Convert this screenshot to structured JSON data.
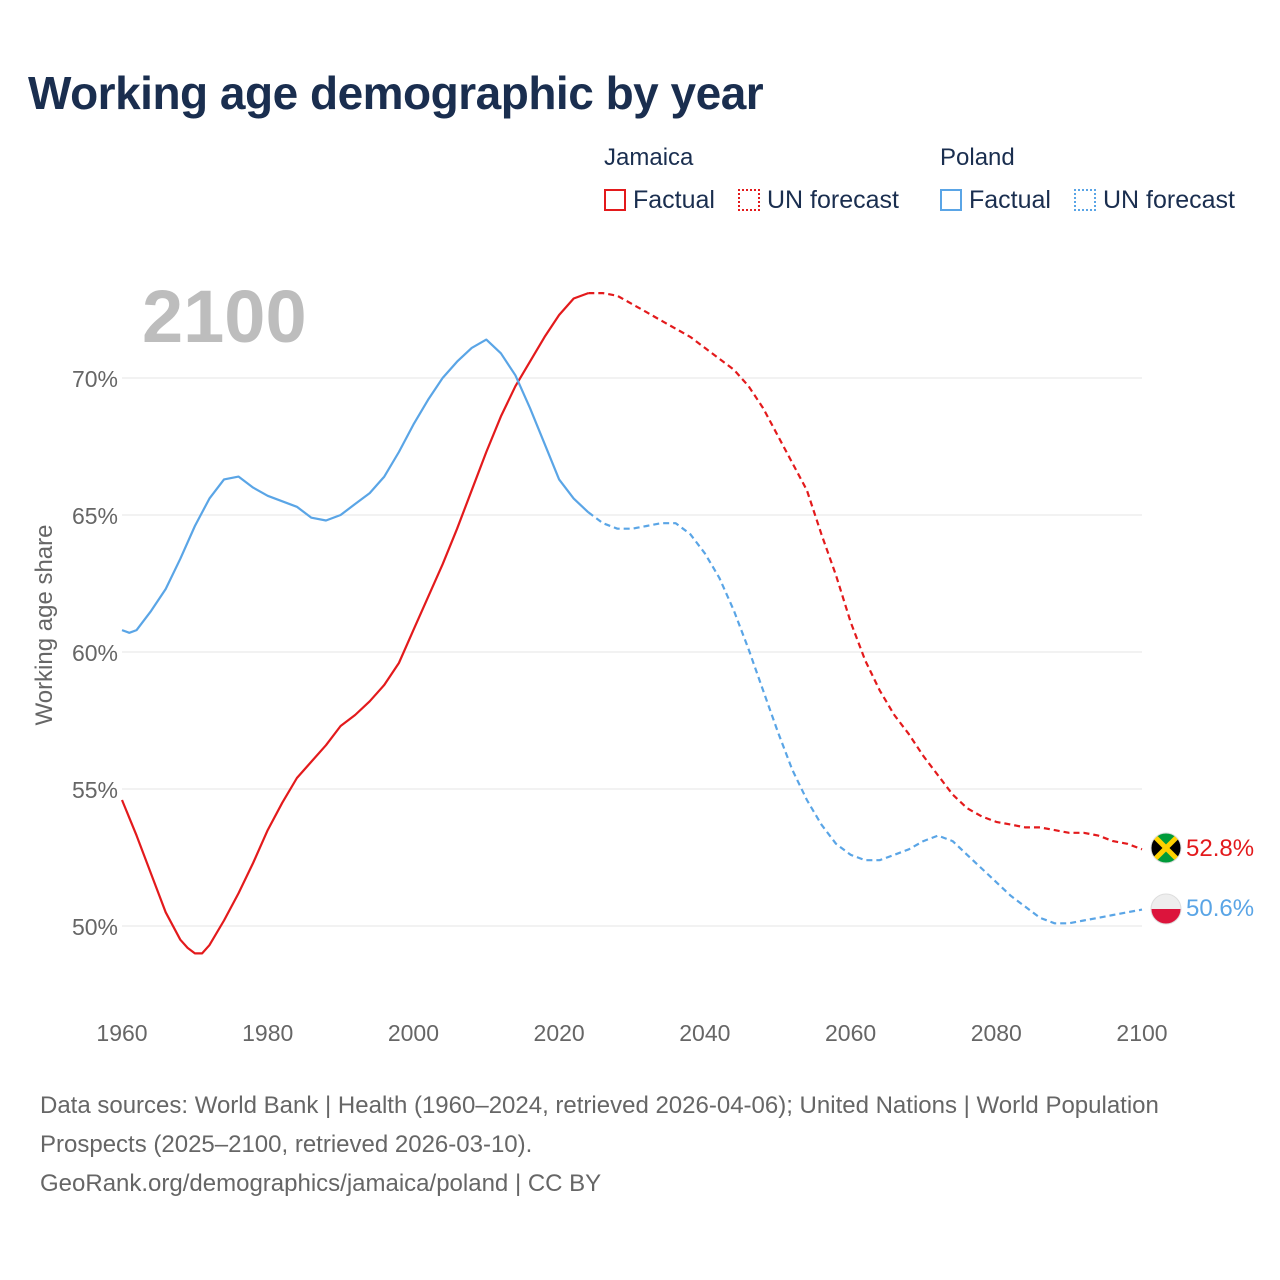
{
  "title": "Working age demographic by year",
  "legend": {
    "groups": [
      {
        "name": "Jamaica",
        "factual_label": "Factual",
        "forecast_label": "UN forecast",
        "color": "#e31a1c"
      },
      {
        "name": "Poland",
        "factual_label": "Factual",
        "forecast_label": "UN forecast",
        "color": "#5aa5e6"
      }
    ]
  },
  "year_label": "2100",
  "footer": {
    "line1": "Data sources: World Bank | Health (1960–2024, retrieved 2026-04-06); United Nations | World Population Prospects (2025–2100, retrieved 2026-03-10).",
    "line2": "GeoRank.org/demographics/jamaica/poland | CC BY"
  },
  "chart_data": {
    "type": "line",
    "title": "Working age demographic by year",
    "xlabel": "",
    "ylabel": "Working age share",
    "xlim": [
      1960,
      2100
    ],
    "ylim": [
      47,
      73.5
    ],
    "x_ticks": [
      1960,
      1980,
      2000,
      2020,
      2040,
      2060,
      2080,
      2100
    ],
    "y_ticks": [
      50,
      55,
      60,
      65,
      70
    ],
    "y_tick_labels": [
      "50%",
      "55%",
      "60%",
      "65%",
      "70%"
    ],
    "grid": true,
    "factual_end_year": 2024,
    "end_labels": [
      {
        "series": "Jamaica",
        "text": "52.8%",
        "flag": "jamaica-flag-icon"
      },
      {
        "series": "Poland",
        "text": "50.6%",
        "flag": "poland-flag-icon"
      }
    ],
    "series": [
      {
        "name": "Jamaica",
        "color": "#e31a1c",
        "points": [
          [
            1960,
            54.6
          ],
          [
            1962,
            53.3
          ],
          [
            1964,
            51.9
          ],
          [
            1966,
            50.5
          ],
          [
            1968,
            49.5
          ],
          [
            1969,
            49.2
          ],
          [
            1970,
            49.0
          ],
          [
            1971,
            49.0
          ],
          [
            1972,
            49.3
          ],
          [
            1974,
            50.2
          ],
          [
            1976,
            51.2
          ],
          [
            1978,
            52.3
          ],
          [
            1980,
            53.5
          ],
          [
            1982,
            54.5
          ],
          [
            1984,
            55.4
          ],
          [
            1986,
            56.0
          ],
          [
            1988,
            56.6
          ],
          [
            1990,
            57.3
          ],
          [
            1992,
            57.7
          ],
          [
            1994,
            58.2
          ],
          [
            1996,
            58.8
          ],
          [
            1998,
            59.6
          ],
          [
            2000,
            60.8
          ],
          [
            2002,
            62.0
          ],
          [
            2004,
            63.2
          ],
          [
            2006,
            64.5
          ],
          [
            2008,
            65.9
          ],
          [
            2010,
            67.3
          ],
          [
            2012,
            68.6
          ],
          [
            2014,
            69.7
          ],
          [
            2016,
            70.6
          ],
          [
            2018,
            71.5
          ],
          [
            2020,
            72.3
          ],
          [
            2022,
            72.9
          ],
          [
            2024,
            73.1
          ],
          [
            2026,
            73.1
          ],
          [
            2028,
            73.0
          ],
          [
            2030,
            72.7
          ],
          [
            2032,
            72.4
          ],
          [
            2034,
            72.1
          ],
          [
            2036,
            71.8
          ],
          [
            2038,
            71.5
          ],
          [
            2040,
            71.1
          ],
          [
            2042,
            70.7
          ],
          [
            2044,
            70.3
          ],
          [
            2046,
            69.7
          ],
          [
            2048,
            68.9
          ],
          [
            2050,
            67.9
          ],
          [
            2052,
            66.9
          ],
          [
            2054,
            65.9
          ],
          [
            2056,
            64.3
          ],
          [
            2058,
            62.8
          ],
          [
            2060,
            61.1
          ],
          [
            2062,
            59.7
          ],
          [
            2064,
            58.6
          ],
          [
            2066,
            57.7
          ],
          [
            2068,
            57.0
          ],
          [
            2070,
            56.2
          ],
          [
            2072,
            55.5
          ],
          [
            2074,
            54.8
          ],
          [
            2076,
            54.3
          ],
          [
            2078,
            54.0
          ],
          [
            2080,
            53.8
          ],
          [
            2082,
            53.7
          ],
          [
            2084,
            53.6
          ],
          [
            2086,
            53.6
          ],
          [
            2088,
            53.5
          ],
          [
            2090,
            53.4
          ],
          [
            2092,
            53.4
          ],
          [
            2094,
            53.3
          ],
          [
            2096,
            53.1
          ],
          [
            2098,
            53.0
          ],
          [
            2100,
            52.8
          ]
        ]
      },
      {
        "name": "Poland",
        "color": "#5aa5e6",
        "points": [
          [
            1960,
            60.8
          ],
          [
            1961,
            60.7
          ],
          [
            1962,
            60.8
          ],
          [
            1964,
            61.5
          ],
          [
            1966,
            62.3
          ],
          [
            1968,
            63.4
          ],
          [
            1970,
            64.6
          ],
          [
            1972,
            65.6
          ],
          [
            1974,
            66.3
          ],
          [
            1976,
            66.4
          ],
          [
            1978,
            66.0
          ],
          [
            1980,
            65.7
          ],
          [
            1982,
            65.5
          ],
          [
            1984,
            65.3
          ],
          [
            1986,
            64.9
          ],
          [
            1988,
            64.8
          ],
          [
            1990,
            65.0
          ],
          [
            1992,
            65.4
          ],
          [
            1994,
            65.8
          ],
          [
            1996,
            66.4
          ],
          [
            1998,
            67.3
          ],
          [
            2000,
            68.3
          ],
          [
            2002,
            69.2
          ],
          [
            2004,
            70.0
          ],
          [
            2006,
            70.6
          ],
          [
            2008,
            71.1
          ],
          [
            2010,
            71.4
          ],
          [
            2012,
            70.9
          ],
          [
            2014,
            70.1
          ],
          [
            2016,
            68.9
          ],
          [
            2018,
            67.6
          ],
          [
            2020,
            66.3
          ],
          [
            2022,
            65.6
          ],
          [
            2024,
            65.1
          ],
          [
            2026,
            64.7
          ],
          [
            2028,
            64.5
          ],
          [
            2030,
            64.5
          ],
          [
            2032,
            64.6
          ],
          [
            2034,
            64.7
          ],
          [
            2036,
            64.7
          ],
          [
            2038,
            64.3
          ],
          [
            2040,
            63.6
          ],
          [
            2042,
            62.7
          ],
          [
            2044,
            61.5
          ],
          [
            2046,
            60.1
          ],
          [
            2048,
            58.6
          ],
          [
            2050,
            57.1
          ],
          [
            2052,
            55.7
          ],
          [
            2054,
            54.6
          ],
          [
            2056,
            53.7
          ],
          [
            2058,
            53.0
          ],
          [
            2060,
            52.6
          ],
          [
            2062,
            52.4
          ],
          [
            2064,
            52.4
          ],
          [
            2066,
            52.6
          ],
          [
            2068,
            52.8
          ],
          [
            2070,
            53.1
          ],
          [
            2072,
            53.3
          ],
          [
            2074,
            53.1
          ],
          [
            2076,
            52.6
          ],
          [
            2078,
            52.1
          ],
          [
            2080,
            51.6
          ],
          [
            2082,
            51.1
          ],
          [
            2084,
            50.7
          ],
          [
            2086,
            50.3
          ],
          [
            2088,
            50.1
          ],
          [
            2090,
            50.1
          ],
          [
            2092,
            50.2
          ],
          [
            2094,
            50.3
          ],
          [
            2096,
            50.4
          ],
          [
            2098,
            50.5
          ],
          [
            2100,
            50.6
          ]
        ]
      }
    ]
  }
}
